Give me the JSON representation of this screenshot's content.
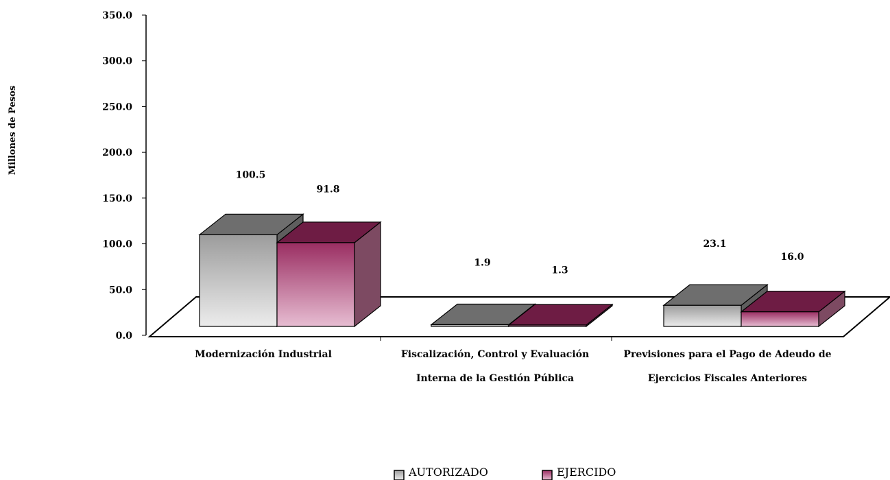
{
  "chart_data": {
    "type": "bar",
    "title": "",
    "xlabel": "",
    "ylabel": "Millones de Pesos",
    "ylim": [
      0,
      350
    ],
    "yticks": [
      "0.0",
      "50.0",
      "100.0",
      "150.0",
      "200.0",
      "250.0",
      "300.0",
      "350.0"
    ],
    "ytick_values": [
      0,
      50,
      100,
      150,
      200,
      250,
      300,
      350
    ],
    "categories": [
      [
        "Modernización Industrial"
      ],
      [
        "Fiscalización, Control y Evaluación",
        "Interna de la Gestión Pública"
      ],
      [
        "Previsiones para el Pago de Adeudo de",
        "Ejercicios Fiscales Anteriores"
      ]
    ],
    "series": [
      {
        "name": "AUTORIZADO",
        "values": [
          100.5,
          1.9,
          23.1
        ],
        "labels": [
          "100.5",
          "1.9",
          "23.1"
        ]
      },
      {
        "name": "EJERCIDO",
        "values": [
          91.8,
          1.3,
          16.0
        ],
        "labels": [
          "91.8",
          "1.3",
          "16.0"
        ]
      }
    ],
    "grid": false,
    "legend_position": "bottom-center",
    "colors": {
      "autorizado_front_top": "#9c9c9c",
      "autorizado_front_bottom": "#ececec",
      "autorizado_top": "#6e6e6e",
      "autorizado_side": "#5e5e5e",
      "ejercido_front_top": "#9a2e62",
      "ejercido_front_bottom": "#e7bdd2",
      "ejercido_top": "#6e1c44",
      "ejercido_side": "#7d4a62"
    }
  }
}
